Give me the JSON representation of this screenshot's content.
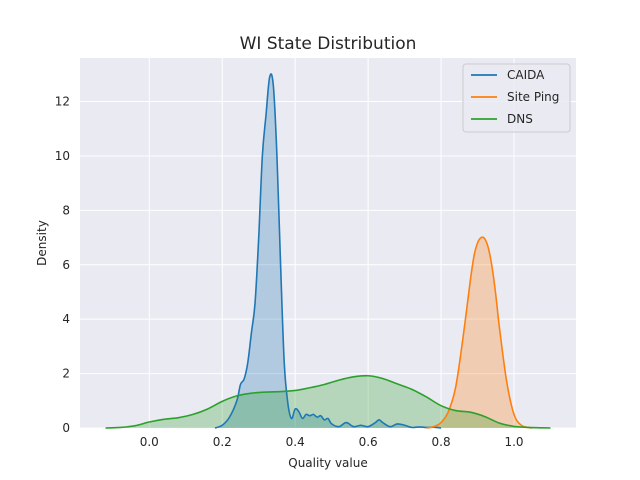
{
  "chart_data": {
    "type": "area",
    "title": "WI State Distribution",
    "xlabel": "Quality value",
    "ylabel": "Density",
    "xlim": [
      -0.19,
      1.17
    ],
    "ylim": [
      0,
      13.6
    ],
    "xticks": [
      "0.0",
      "0.2",
      "0.4",
      "0.6",
      "0.8",
      "1.0"
    ],
    "yticks": [
      "0",
      "2",
      "4",
      "6",
      "8",
      "10",
      "12"
    ],
    "grid": true,
    "legend_position": "top-right",
    "series": [
      {
        "name": "CAIDA",
        "color": "#1f77b4",
        "fill_color": "#92b4d5",
        "x": [
          0.18,
          0.2,
          0.22,
          0.24,
          0.25,
          0.26,
          0.27,
          0.28,
          0.29,
          0.3,
          0.31,
          0.32,
          0.33,
          0.34,
          0.35,
          0.36,
          0.37,
          0.38,
          0.39,
          0.4,
          0.41,
          0.42,
          0.43,
          0.44,
          0.45,
          0.46,
          0.47,
          0.48,
          0.49,
          0.5,
          0.52,
          0.54,
          0.56,
          0.58,
          0.6,
          0.62,
          0.63,
          0.64,
          0.66,
          0.68,
          0.7,
          0.72,
          0.74,
          0.76,
          0.78,
          0.8
        ],
        "y": [
          0,
          0.1,
          0.4,
          1.0,
          1.6,
          1.8,
          2.4,
          3.5,
          4.6,
          7.0,
          10.0,
          11.5,
          12.9,
          12.6,
          10.0,
          6.0,
          2.4,
          0.9,
          0.35,
          0.7,
          0.6,
          0.35,
          0.5,
          0.45,
          0.5,
          0.4,
          0.45,
          0.3,
          0.35,
          0.15,
          0.05,
          0.2,
          0.05,
          0.1,
          0.05,
          0.2,
          0.3,
          0.2,
          0.05,
          0.15,
          0.1,
          0.02,
          0.04,
          0.02,
          0.03,
          0.0
        ]
      },
      {
        "name": "Site Ping",
        "color": "#ff7f0e",
        "fill_color": "#f1c0a2",
        "x": [
          0.76,
          0.78,
          0.8,
          0.82,
          0.84,
          0.86,
          0.88,
          0.89,
          0.9,
          0.91,
          0.92,
          0.93,
          0.94,
          0.95,
          0.96,
          0.98,
          1.0,
          1.02,
          1.04,
          1.05
        ],
        "y": [
          0,
          0.05,
          0.2,
          0.6,
          1.5,
          3.3,
          5.4,
          6.3,
          6.8,
          7.0,
          6.95,
          6.6,
          5.9,
          4.9,
          3.7,
          1.7,
          0.5,
          0.1,
          0.02,
          0
        ]
      },
      {
        "name": "DNS",
        "color": "#2ca02c",
        "fill_color": "#b6d5b6",
        "x": [
          -0.12,
          -0.08,
          -0.04,
          0.0,
          0.04,
          0.08,
          0.12,
          0.16,
          0.2,
          0.24,
          0.28,
          0.32,
          0.36,
          0.4,
          0.44,
          0.48,
          0.52,
          0.56,
          0.6,
          0.64,
          0.68,
          0.72,
          0.76,
          0.8,
          0.84,
          0.88,
          0.92,
          0.96,
          1.0,
          1.04,
          1.08,
          1.1
        ],
        "y": [
          0,
          0.02,
          0.08,
          0.22,
          0.32,
          0.38,
          0.5,
          0.7,
          0.98,
          1.18,
          1.28,
          1.32,
          1.34,
          1.38,
          1.48,
          1.6,
          1.76,
          1.88,
          1.92,
          1.82,
          1.62,
          1.42,
          1.14,
          0.82,
          0.64,
          0.58,
          0.42,
          0.18,
          0.06,
          0.02,
          0.005,
          0
        ]
      }
    ]
  }
}
